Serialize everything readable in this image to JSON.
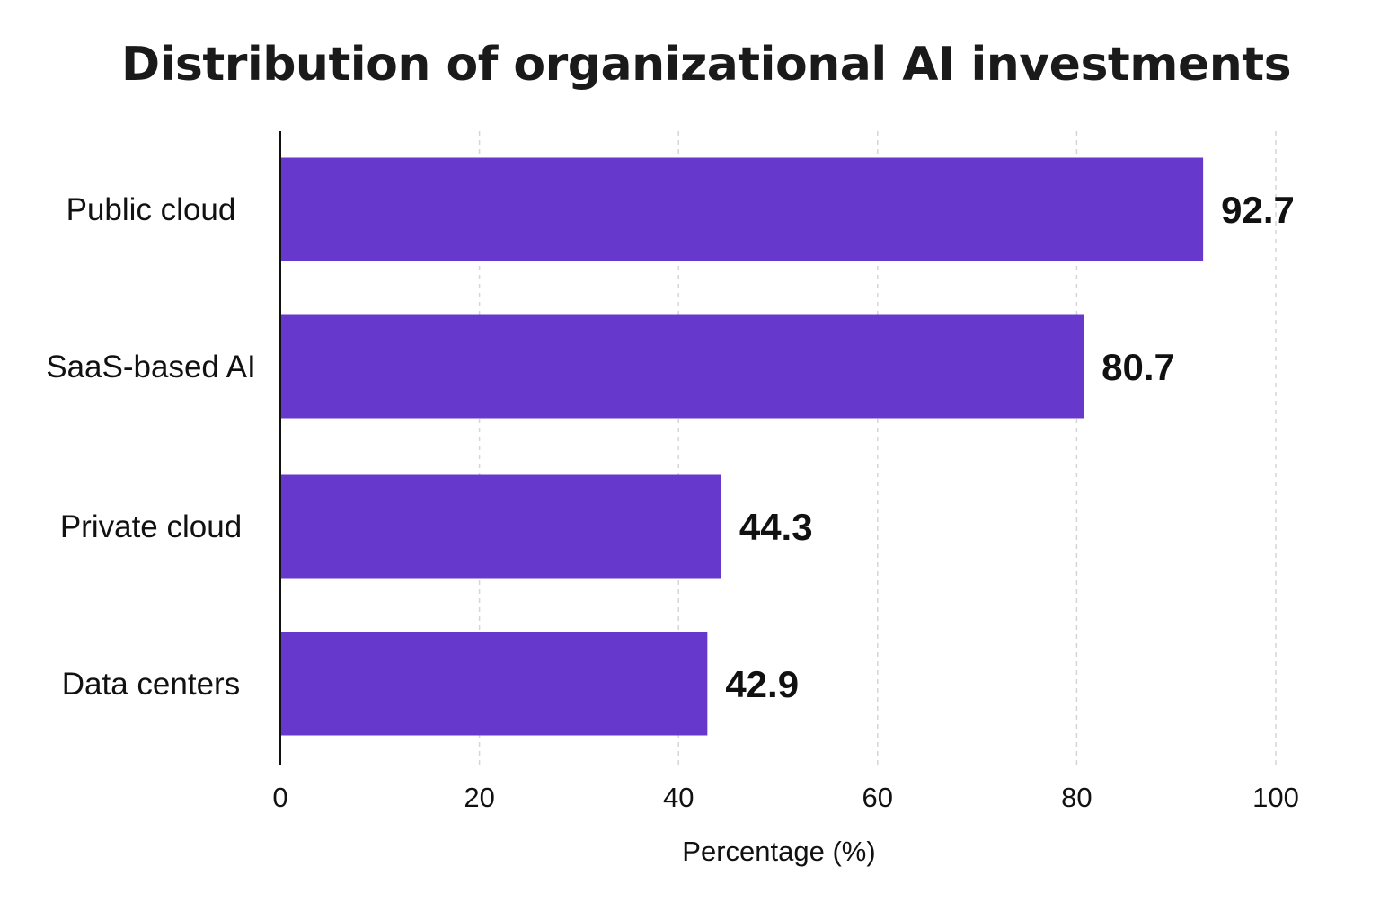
{
  "chart_data": {
    "type": "bar",
    "orientation": "horizontal",
    "title": "Distribution of organizational AI investments",
    "categories": [
      "Public cloud",
      "SaaS-based AI",
      "Private cloud",
      "Data centers"
    ],
    "values": [
      92.7,
      80.7,
      44.3,
      42.9
    ],
    "value_labels": [
      "92.7",
      "80.7",
      "44.3",
      "42.9"
    ],
    "xlabel": "Percentage (%)",
    "ylabel": "",
    "xlim": [
      0,
      100
    ],
    "xticks": [
      0,
      20,
      40,
      60,
      80,
      100
    ],
    "xtick_labels": [
      "0",
      "20",
      "40",
      "60",
      "80",
      "100"
    ],
    "grid": "vertical dashed",
    "legend": "none",
    "bar_color": "#6638CC",
    "grid_color": "#D6D6D6",
    "axis_color": "#111111"
  }
}
